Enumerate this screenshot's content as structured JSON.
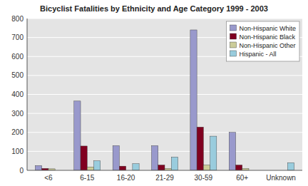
{
  "chart_data": {
    "type": "bar",
    "title": "Bicyclist Fatalities by Ethnicity and Age Category 1999 - 2003",
    "categories": [
      "<6",
      "6-15",
      "16-20",
      "21-29",
      "30-59",
      "60+",
      "Unknown"
    ],
    "series": [
      {
        "name": "Non-Hispanic White",
        "color": "#9999cc",
        "values": [
          25,
          365,
          130,
          130,
          740,
          200,
          0
        ]
      },
      {
        "name": "Non-Hispanic Black",
        "color": "#800020",
        "values": [
          10,
          128,
          22,
          28,
          228,
          28,
          0
        ]
      },
      {
        "name": "Non-Hispanic Other",
        "color": "#cccc99",
        "values": [
          8,
          18,
          0,
          10,
          28,
          10,
          0
        ]
      },
      {
        "name": "Hispanic - All",
        "color": "#99ccdd",
        "values": [
          0,
          50,
          35,
          70,
          180,
          0,
          40
        ]
      }
    ],
    "ylim": [
      0,
      800
    ],
    "yticks": [
      0,
      100,
      200,
      300,
      400,
      500,
      600,
      700,
      800
    ],
    "grid": true,
    "legend": "upper right"
  }
}
